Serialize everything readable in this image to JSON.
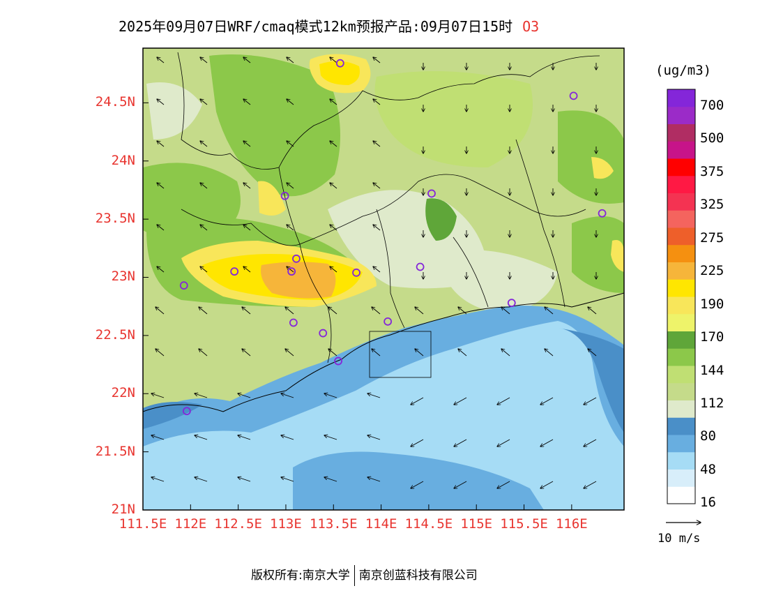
{
  "title": {
    "main": "2025年09月07日WRF/cmaq模式12km预报产品:09月07日15时",
    "species": "O3"
  },
  "axes": {
    "lat_labels": [
      "24.5N",
      "24N",
      "23.5N",
      "23N",
      "22.5N",
      "22N",
      "21.5N",
      "21N"
    ],
    "lat_values": [
      24.5,
      24,
      23.5,
      23,
      22.5,
      22,
      21.5,
      21
    ],
    "lon_labels": [
      "111.5E",
      "112E",
      "112.5E",
      "113E",
      "113.5E",
      "114E",
      "114.5E",
      "115E",
      "115.5E",
      "116E"
    ],
    "lon_values": [
      111.5,
      112,
      112.5,
      113,
      113.5,
      114,
      114.5,
      115,
      115.5,
      116
    ],
    "lon_range": [
      111.5,
      116.55
    ],
    "lat_range": [
      21,
      24.97
    ]
  },
  "colorbar": {
    "units": "(ug/m3)",
    "levels": [
      "700",
      "500",
      "375",
      "325",
      "275",
      "225",
      "190",
      "170",
      "144",
      "112",
      "80",
      "48",
      "16"
    ],
    "colors": [
      "#ffffff",
      "#d8eefa",
      "#a6dcf5",
      "#68aee0",
      "#4a8fc8",
      "#dfeacb",
      "#c5db8a",
      "#c0df73",
      "#8cc84a",
      "#5fa639",
      "#eef36a",
      "#f8e65a",
      "#ffe600",
      "#f6b53a",
      "#f59010",
      "#ee5f2a",
      "#f4645e",
      "#f43352",
      "#ff1944",
      "#ff0000",
      "#c71489",
      "#b02d63",
      "#9b2bc8",
      "#8426d9"
    ]
  },
  "wind": {
    "reference_label": "10 m/s"
  },
  "stations": [
    {
      "lon": 113.57,
      "lat": 24.84
    },
    {
      "lon": 116.02,
      "lat": 24.56
    },
    {
      "lon": 112.99,
      "lat": 23.7
    },
    {
      "lon": 114.53,
      "lat": 23.72
    },
    {
      "lon": 116.32,
      "lat": 23.55
    },
    {
      "lon": 112.46,
      "lat": 23.05
    },
    {
      "lon": 113.06,
      "lat": 23.05
    },
    {
      "lon": 113.11,
      "lat": 23.16
    },
    {
      "lon": 113.74,
      "lat": 23.04
    },
    {
      "lon": 114.41,
      "lat": 23.09
    },
    {
      "lon": 111.93,
      "lat": 22.93
    },
    {
      "lon": 115.37,
      "lat": 22.78
    },
    {
      "lon": 113.08,
      "lat": 22.61
    },
    {
      "lon": 113.39,
      "lat": 22.52
    },
    {
      "lon": 114.07,
      "lat": 22.62
    },
    {
      "lon": 113.55,
      "lat": 22.28
    },
    {
      "lon": 111.96,
      "lat": 21.85
    }
  ],
  "footer": {
    "copyright": "版权所有:南京大学",
    "company": "南京创蓝科技有限公司"
  }
}
